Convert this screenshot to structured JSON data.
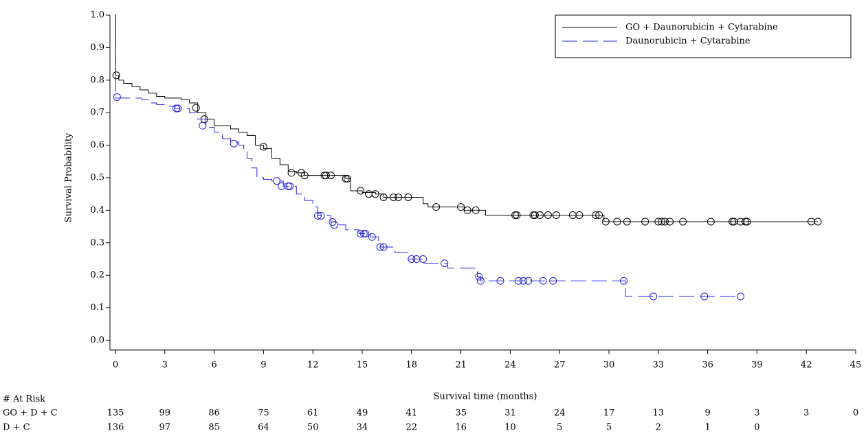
{
  "chart_data": {
    "type": "step",
    "x_label": "Survival time (months)",
    "y_label": "Survival Probability",
    "xlim": [
      0,
      45
    ],
    "ylim": [
      0,
      1
    ],
    "xticks": [
      0,
      3,
      6,
      9,
      12,
      15,
      18,
      21,
      24,
      27,
      30,
      33,
      36,
      39,
      42,
      45
    ],
    "yticks": [
      {
        "value": 0,
        "label": "0.0"
      },
      0.1,
      0.2,
      0.3,
      0.4,
      0.5,
      0.6,
      0.7,
      0.8,
      0.9,
      {
        "value": 1,
        "label": "1.0"
      }
    ],
    "legend": "top-right",
    "series": [
      {
        "name": "GO + Daunorubicin + Cytarabine",
        "color": "#000000",
        "dash": false,
        "x": [
          0,
          0.01,
          0.2,
          0.5,
          1,
          1.5,
          2,
          2.5,
          3,
          4,
          4.5,
          5,
          5.5,
          6,
          7,
          7.5,
          8,
          8.5,
          9,
          9.5,
          10,
          10.5,
          11,
          11.5,
          14,
          14.3,
          15,
          15.8,
          16.3,
          18.7,
          19,
          21.2,
          22.5,
          29.7,
          42.7
        ],
        "values": [
          1,
          0.815,
          0.8,
          0.79,
          0.78,
          0.77,
          0.76,
          0.75,
          0.745,
          0.74,
          0.73,
          0.7,
          0.68,
          0.66,
          0.65,
          0.64,
          0.63,
          0.6,
          0.59,
          0.56,
          0.54,
          0.52,
          0.515,
          0.507,
          0.497,
          0.46,
          0.455,
          0.45,
          0.44,
          0.42,
          0.41,
          0.4,
          0.385,
          0.365,
          0.365
        ],
        "censor_x": [
          0.05,
          4.9,
          5.4,
          9,
          10.7,
          11.3,
          11.5,
          12.7,
          12.8,
          13.1,
          14,
          14.1,
          14.9,
          15.4,
          15.8,
          16.3,
          16.9,
          17.2,
          17.8,
          19.5,
          21,
          21.4,
          21.9,
          24.3,
          24.4,
          25.4,
          25.5,
          25.8,
          26.3,
          26.8,
          27.8,
          28.2,
          29.2,
          29.4,
          29.8,
          30.5,
          31.1,
          32.2,
          33,
          33.2,
          33.4,
          33.7,
          34.5,
          36.2,
          37.5,
          37.6,
          38,
          38.3,
          38.4,
          42.3,
          42.7
        ],
        "censor_y": [
          0.815,
          0.715,
          0.68,
          0.595,
          0.515,
          0.515,
          0.507,
          0.507,
          0.507,
          0.507,
          0.497,
          0.497,
          0.46,
          0.45,
          0.45,
          0.44,
          0.44,
          0.44,
          0.44,
          0.41,
          0.41,
          0.4,
          0.4,
          0.385,
          0.385,
          0.385,
          0.385,
          0.385,
          0.385,
          0.385,
          0.385,
          0.385,
          0.385,
          0.385,
          0.365,
          0.365,
          0.365,
          0.365,
          0.365,
          0.365,
          0.365,
          0.365,
          0.365,
          0.365,
          0.365,
          0.365,
          0.365,
          0.365,
          0.365,
          0.365,
          0.365
        ]
      },
      {
        "name": "Daunorubicin + Cytarabine",
        "color": "#2222dd",
        "dash": true,
        "x": [
          0,
          0.02,
          1.6,
          2,
          2.5,
          3,
          3.6,
          4.5,
          5,
          5.5,
          6,
          6.5,
          7,
          7.5,
          7.8,
          8,
          8.3,
          8.6,
          9,
          9.5,
          10.2,
          11,
          11.5,
          12,
          12.3,
          13.1,
          13.4,
          14,
          14.8,
          15.5,
          16,
          16.1,
          17,
          17.8,
          18.7,
          20.2,
          22,
          22.2,
          31,
          38
        ],
        "values": [
          1,
          0.745,
          0.74,
          0.73,
          0.725,
          0.72,
          0.713,
          0.7,
          0.68,
          0.655,
          0.64,
          0.62,
          0.61,
          0.6,
          0.58,
          0.56,
          0.53,
          0.5,
          0.495,
          0.49,
          0.474,
          0.45,
          0.43,
          0.41,
          0.383,
          0.364,
          0.355,
          0.34,
          0.328,
          0.318,
          0.3,
          0.287,
          0.27,
          0.25,
          0.237,
          0.222,
          0.196,
          0.183,
          0.135,
          0.135
        ],
        "censor_x": [
          0.1,
          3.7,
          3.8,
          5.3,
          7.2,
          9.8,
          10.1,
          10.5,
          10.6,
          12.3,
          12.5,
          13.2,
          13.3,
          14.9,
          15.1,
          15.2,
          15.6,
          16.1,
          16.3,
          18,
          18.3,
          18.7,
          20,
          22.1,
          22.2,
          23.4,
          24.5,
          24.8,
          25.1,
          26,
          26.6,
          30.9,
          32.7,
          35.8,
          38
        ],
        "censor_y": [
          0.748,
          0.713,
          0.713,
          0.66,
          0.605,
          0.49,
          0.474,
          0.474,
          0.474,
          0.383,
          0.383,
          0.364,
          0.355,
          0.328,
          0.328,
          0.328,
          0.318,
          0.287,
          0.287,
          0.25,
          0.25,
          0.25,
          0.237,
          0.196,
          0.183,
          0.183,
          0.183,
          0.183,
          0.183,
          0.183,
          0.183,
          0.183,
          0.135,
          0.135,
          0.135
        ]
      }
    ],
    "at_risk": {
      "title": "# At Risk",
      "rows": [
        {
          "label": "GO + D + C",
          "values": [
            135,
            99,
            86,
            75,
            61,
            49,
            41,
            35,
            31,
            24,
            17,
            13,
            9,
            3,
            3,
            0
          ]
        },
        {
          "label": "D + C",
          "values": [
            136,
            97,
            85,
            64,
            50,
            34,
            22,
            16,
            10,
            5,
            5,
            2,
            1,
            0
          ]
        }
      ]
    }
  }
}
